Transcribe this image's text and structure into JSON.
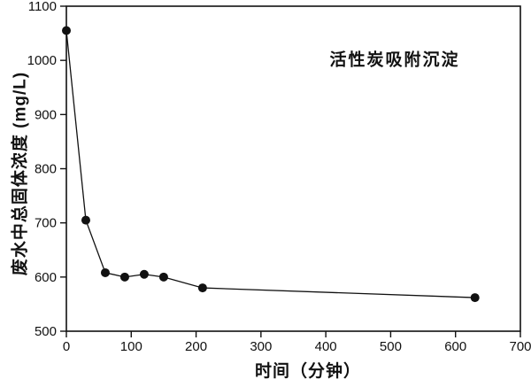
{
  "chart_data": {
    "type": "line",
    "title": "",
    "xlabel": "时间（分钟）",
    "ylabel": "废水中总固体浓度 (mg/L)",
    "annotation": "活性炭吸附沉淀",
    "xlim": [
      0,
      700
    ],
    "ylim": [
      500,
      1100
    ],
    "xticks": [
      0,
      100,
      200,
      300,
      400,
      500,
      600,
      700
    ],
    "yticks": [
      500,
      600,
      700,
      800,
      900,
      1000,
      1100
    ],
    "grid": false,
    "legend_position": "none",
    "marker": "filled-circle",
    "marker_radius": 5,
    "line_color": "#111111",
    "text_color": "#111111",
    "background_color": "#ffffff",
    "series": [
      {
        "name": "活性炭吸附沉淀",
        "x": [
          0,
          30,
          60,
          90,
          120,
          150,
          210,
          630
        ],
        "y": [
          1055,
          705,
          608,
          600,
          605,
          600,
          580,
          562
        ]
      }
    ]
  }
}
